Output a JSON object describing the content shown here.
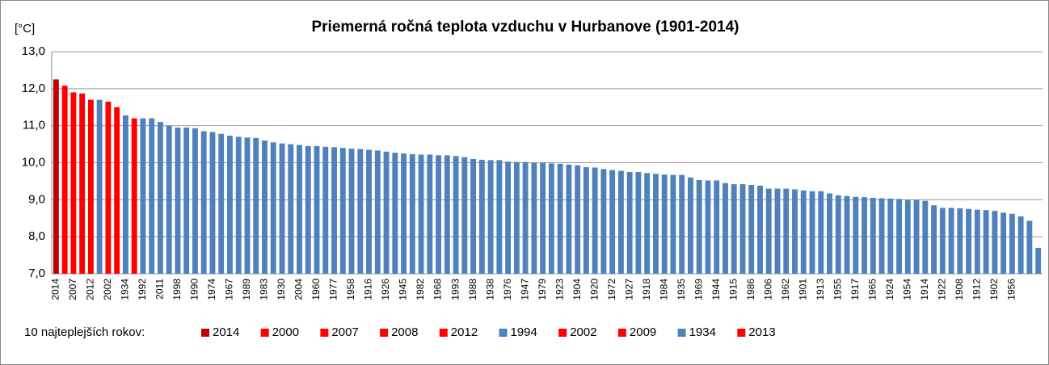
{
  "chart_data": {
    "type": "bar",
    "title": "Priemerná ročná teplota vzduchu v Hurbanove (1901-2014)",
    "ylabel": "[°C]",
    "color": "#4f81bd",
    "grid": true,
    "ylim": [
      7,
      13
    ],
    "yticks": [
      {
        "value": 7,
        "label": "7,0"
      },
      {
        "value": 8,
        "label": "8,0"
      },
      {
        "value": 9,
        "label": "9,0"
      },
      {
        "value": 10,
        "label": "10,0"
      },
      {
        "value": 11,
        "label": "11,0"
      },
      {
        "value": 12,
        "label": "12,0"
      },
      {
        "value": 13,
        "label": "13,0"
      }
    ],
    "categories": [
      "2014",
      null,
      "2007",
      null,
      "2012",
      null,
      "2002",
      null,
      "1934",
      null,
      "1992",
      null,
      "2011",
      null,
      "1998",
      null,
      "1990",
      null,
      "1974",
      null,
      "1967",
      null,
      "1989",
      null,
      "1983",
      null,
      "1930",
      null,
      "2004",
      null,
      "1960",
      null,
      "1977",
      null,
      "1958",
      null,
      "1916",
      null,
      "1926",
      null,
      "1945",
      null,
      "1982",
      null,
      "1968",
      null,
      "1993",
      null,
      "1988",
      null,
      "1938",
      null,
      "1976",
      null,
      "1947",
      null,
      "1979",
      null,
      "1923",
      null,
      "1904",
      null,
      "1920",
      null,
      "1972",
      null,
      "1927",
      null,
      "1918",
      null,
      "1984",
      null,
      "1935",
      null,
      "1969",
      null,
      "1944",
      null,
      "1915",
      null,
      "1986",
      null,
      "1906",
      null,
      "1962",
      null,
      "1901",
      null,
      "1913",
      null,
      "1955",
      null,
      "1917",
      null,
      "1965",
      null,
      "1924",
      null,
      "1954",
      null,
      "1914",
      null,
      "1922",
      null,
      "1908",
      null,
      "1912",
      null,
      "1902",
      null,
      "1956",
      null,
      null,
      null
    ],
    "values": [
      12.25,
      12.08,
      11.9,
      11.87,
      11.7,
      11.7,
      11.65,
      11.5,
      11.28,
      11.2,
      11.2,
      11.2,
      11.1,
      11.0,
      10.95,
      10.95,
      10.93,
      10.85,
      10.83,
      10.78,
      10.73,
      10.7,
      10.68,
      10.67,
      10.6,
      10.55,
      10.52,
      10.5,
      10.48,
      10.45,
      10.45,
      10.43,
      10.42,
      10.4,
      10.38,
      10.37,
      10.35,
      10.33,
      10.3,
      10.27,
      10.25,
      10.23,
      10.22,
      10.22,
      10.2,
      10.2,
      10.18,
      10.15,
      10.1,
      10.08,
      10.07,
      10.07,
      10.03,
      10.02,
      10.02,
      10.0,
      10.0,
      9.98,
      9.97,
      9.95,
      9.93,
      9.88,
      9.87,
      9.83,
      9.8,
      9.78,
      9.75,
      9.75,
      9.72,
      9.7,
      9.68,
      9.67,
      9.67,
      9.6,
      9.53,
      9.52,
      9.52,
      9.45,
      9.42,
      9.42,
      9.4,
      9.38,
      9.3,
      9.3,
      9.3,
      9.28,
      9.25,
      9.23,
      9.23,
      9.17,
      9.12,
      9.1,
      9.08,
      9.07,
      9.05,
      9.04,
      9.03,
      9.02,
      9.0,
      9.0,
      8.97,
      8.85,
      8.78,
      8.78,
      8.77,
      8.75,
      8.73,
      8.72,
      8.7,
      8.65,
      8.62,
      8.55,
      8.43,
      7.7
    ],
    "legend": {
      "title": "10 najteplejších rokov:",
      "items": [
        {
          "name": "2014",
          "color": "#c00000"
        },
        {
          "name": "2000",
          "color": "#ff0000"
        },
        {
          "name": "2007",
          "color": "#ff0000"
        },
        {
          "name": "2008",
          "color": "#ff0000"
        },
        {
          "name": "2012",
          "color": "#ff0000"
        },
        {
          "name": "1994",
          "color": "#4f81bd"
        },
        {
          "name": "2002",
          "color": "#ff0000"
        },
        {
          "name": "2009",
          "color": "#ff0000"
        },
        {
          "name": "1934",
          "color": "#4f81bd"
        },
        {
          "name": "2013",
          "color": "#ff0000"
        }
      ]
    }
  }
}
